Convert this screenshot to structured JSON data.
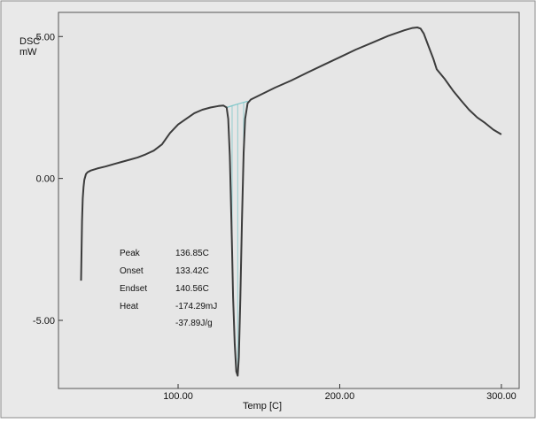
{
  "chart_data": {
    "type": "line",
    "ylabel_top": "DSC",
    "ylabel_unit": "mW",
    "xlabel": "Temp  [C]",
    "xlim": [
      26,
      311
    ],
    "ylim": [
      -7.4,
      5.85
    ],
    "xticks": [
      100,
      200,
      300
    ],
    "xtick_labels": [
      "100.00",
      "200.00",
      "300.00"
    ],
    "yticks": [
      5,
      0,
      -5
    ],
    "ytick_labels": [
      "5.00",
      "0.00",
      "-5.00"
    ],
    "grid": false,
    "legend": "none",
    "series": [
      {
        "color": "#3c3c3c",
        "x": [
          40,
          40.6,
          41,
          41.5,
          42,
          43,
          44,
          46,
          50,
          55,
          60,
          65,
          70,
          75,
          80,
          85,
          90,
          95,
          100,
          105,
          110,
          115,
          120,
          125,
          128,
          130,
          131,
          132,
          133,
          133.4,
          134,
          135,
          136,
          136.85,
          137.6,
          138.5,
          139.5,
          140.56,
          141.5,
          143,
          145,
          150,
          160,
          170,
          180,
          190,
          200,
          210,
          220,
          230,
          240,
          245,
          248,
          250,
          252,
          255,
          258,
          260,
          265,
          270,
          275,
          280,
          285,
          290,
          295,
          300
        ],
        "y": [
          -3.6,
          -1.5,
          -0.7,
          -0.3,
          -0.05,
          0.15,
          0.22,
          0.28,
          0.35,
          0.42,
          0.5,
          0.58,
          0.66,
          0.74,
          0.85,
          0.98,
          1.2,
          1.6,
          1.9,
          2.1,
          2.3,
          2.42,
          2.5,
          2.55,
          2.57,
          2.5,
          2.1,
          0.8,
          -1.5,
          -2.6,
          -4.2,
          -5.8,
          -6.8,
          -6.95,
          -6.3,
          -4.2,
          -1.5,
          0.9,
          2.1,
          2.65,
          2.78,
          2.92,
          3.2,
          3.45,
          3.73,
          4.0,
          4.27,
          4.54,
          4.78,
          5.02,
          5.22,
          5.3,
          5.32,
          5.28,
          5.1,
          4.65,
          4.2,
          3.85,
          3.5,
          3.1,
          2.75,
          2.42,
          2.15,
          1.95,
          1.72,
          1.55
        ]
      }
    ],
    "baseline": {
      "color": "#7fc7c9",
      "x": [
        130,
        133.42,
        136.85,
        140.56,
        143
      ],
      "y": [
        2.5,
        2.56,
        2.62,
        2.68,
        2.72
      ]
    },
    "annotations": [
      {
        "label": "Peak",
        "value": "136.85C"
      },
      {
        "label": "Onset",
        "value": "133.42C"
      },
      {
        "label": "Endset",
        "value": "140.56C"
      },
      {
        "label": "Heat",
        "value": "-174.29mJ"
      },
      {
        "label": "",
        "value": "-37.89J/g"
      }
    ]
  }
}
